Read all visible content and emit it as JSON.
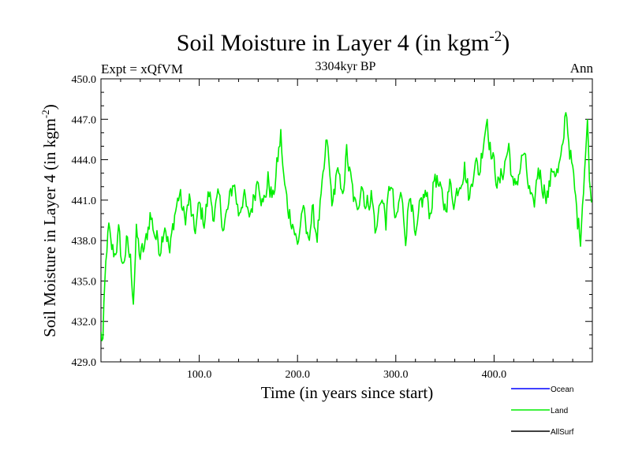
{
  "chart_data": {
    "type": "line",
    "title": "Soil Moisture in Layer 4 (in kgm",
    "title_sup": "-2",
    "title_close": ")",
    "subtitle_left": "Expt = xQfVM",
    "subtitle_center": "3304kyr BP",
    "subtitle_right": "Ann",
    "xlabel": "Time (in years since start)",
    "ylabel": "Soil Moisture in Layer 4 (in kgm",
    "ylabel_sup": "-2",
    "ylabel_close": ")",
    "xlim": [
      0,
      500
    ],
    "ylim": [
      429,
      450
    ],
    "x_ticks": [
      100,
      200,
      300,
      400
    ],
    "x_tick_labels": [
      "100.0",
      "200.0",
      "300.0",
      "400.0"
    ],
    "y_ticks": [
      429,
      432,
      435,
      438,
      441,
      444,
      447,
      450
    ],
    "y_tick_labels": [
      "429.0",
      "432.0",
      "435.0",
      "438.0",
      "441.0",
      "444.0",
      "447.0",
      "450.0"
    ],
    "legend": {
      "placement": "bottom-right",
      "entries": [
        {
          "name": "Ocean",
          "color": "#0000ff"
        },
        {
          "name": "Land",
          "color": "#00ee00"
        },
        {
          "name": "AllSurf",
          "color": "#000000"
        }
      ]
    },
    "series": [
      {
        "name": "Land",
        "color": "#00ee00",
        "anchors": {
          "x": [
            0,
            2,
            4,
            6,
            8,
            10,
            14,
            18,
            22,
            26,
            30,
            33,
            36,
            40,
            45,
            50,
            55,
            60,
            65,
            70,
            75,
            80,
            85,
            90,
            95,
            100,
            105,
            110,
            115,
            120,
            125,
            130,
            135,
            140,
            145,
            150,
            155,
            160,
            165,
            170,
            175,
            180,
            183,
            186,
            190,
            195,
            200,
            205,
            210,
            215,
            220,
            225,
            230,
            233,
            236,
            240,
            245,
            250,
            255,
            260,
            265,
            270,
            275,
            280,
            285,
            290,
            295,
            300,
            305,
            310,
            315,
            320,
            325,
            330,
            335,
            340,
            345,
            350,
            355,
            360,
            365,
            370,
            375,
            380,
            385,
            390,
            393,
            396,
            400,
            405,
            410,
            415,
            420,
            425,
            430,
            435,
            440,
            445,
            450,
            455,
            460,
            465,
            470,
            473,
            476,
            480,
            485,
            488,
            492,
            495,
            498
          ],
          "y": [
            431.0,
            430.6,
            434.5,
            437.5,
            438.8,
            437.5,
            437.0,
            438.5,
            436.0,
            437.8,
            436.5,
            433.8,
            438.5,
            436.8,
            437.5,
            440.0,
            438.5,
            437.5,
            439.5,
            437.0,
            440.0,
            441.5,
            439.5,
            441.0,
            438.5,
            440.5,
            439.5,
            441.5,
            440.0,
            441.0,
            439.0,
            440.5,
            442.5,
            440.0,
            441.5,
            439.5,
            441.0,
            443.0,
            440.5,
            442.5,
            441.0,
            444.0,
            445.8,
            442.5,
            440.5,
            439.5,
            437.5,
            440.5,
            438.0,
            440.0,
            438.5,
            441.5,
            445.5,
            442.5,
            440.5,
            443.5,
            441.0,
            444.5,
            442.0,
            440.0,
            442.5,
            440.5,
            441.5,
            438.5,
            441.5,
            439.5,
            442.5,
            439.0,
            441.5,
            438.5,
            442.0,
            437.5,
            440.5,
            441.5,
            440.0,
            443.0,
            441.5,
            440.5,
            442.0,
            441.0,
            442.5,
            443.5,
            441.0,
            444.0,
            443.0,
            446.0,
            447.2,
            445.0,
            443.5,
            442.0,
            443.5,
            445.0,
            441.5,
            443.0,
            444.5,
            442.0,
            440.0,
            443.5,
            442.0,
            441.5,
            443.5,
            443.0,
            444.5,
            448.0,
            445.5,
            443.0,
            439.5,
            438.5,
            443.5,
            446.5,
            441.5
          ]
        }
      }
    ]
  }
}
